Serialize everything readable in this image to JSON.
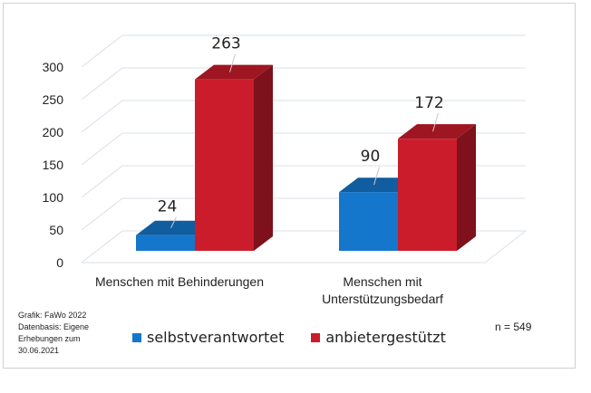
{
  "chart_data": {
    "type": "bar",
    "categories": [
      "Menschen mit Behinderungen",
      "Menschen mit Unterstützungsbedarf"
    ],
    "series": [
      {
        "name": "selbstverantwortet",
        "values": [
          24,
          90
        ],
        "color": "#1477CC"
      },
      {
        "name": "anbietergestützt",
        "values": [
          263,
          172
        ],
        "color": "#CB1C2B"
      }
    ],
    "y_ticks": [
      "0",
      "50",
      "100",
      "150",
      "200",
      "250",
      "300"
    ],
    "ylim": [
      0,
      350
    ],
    "grid": true,
    "legend_position": "bottom",
    "style": "3d-clustered-column"
  },
  "categories_display": {
    "cat1_line1": "Menschen mit Behinderungen",
    "cat2_line1": "Menschen mit",
    "cat2_line2": "Unterstützungsbedarf"
  },
  "source": {
    "line1": "Grafik: FaWo 2022",
    "line2": "Datenbasis: Eigene",
    "line3": "Erhebungen zum",
    "line4": "30.06.2021"
  },
  "legend": {
    "item1": "selbstverantwortet",
    "item2": "anbietergestützt"
  },
  "sample_size": "n = 549"
}
